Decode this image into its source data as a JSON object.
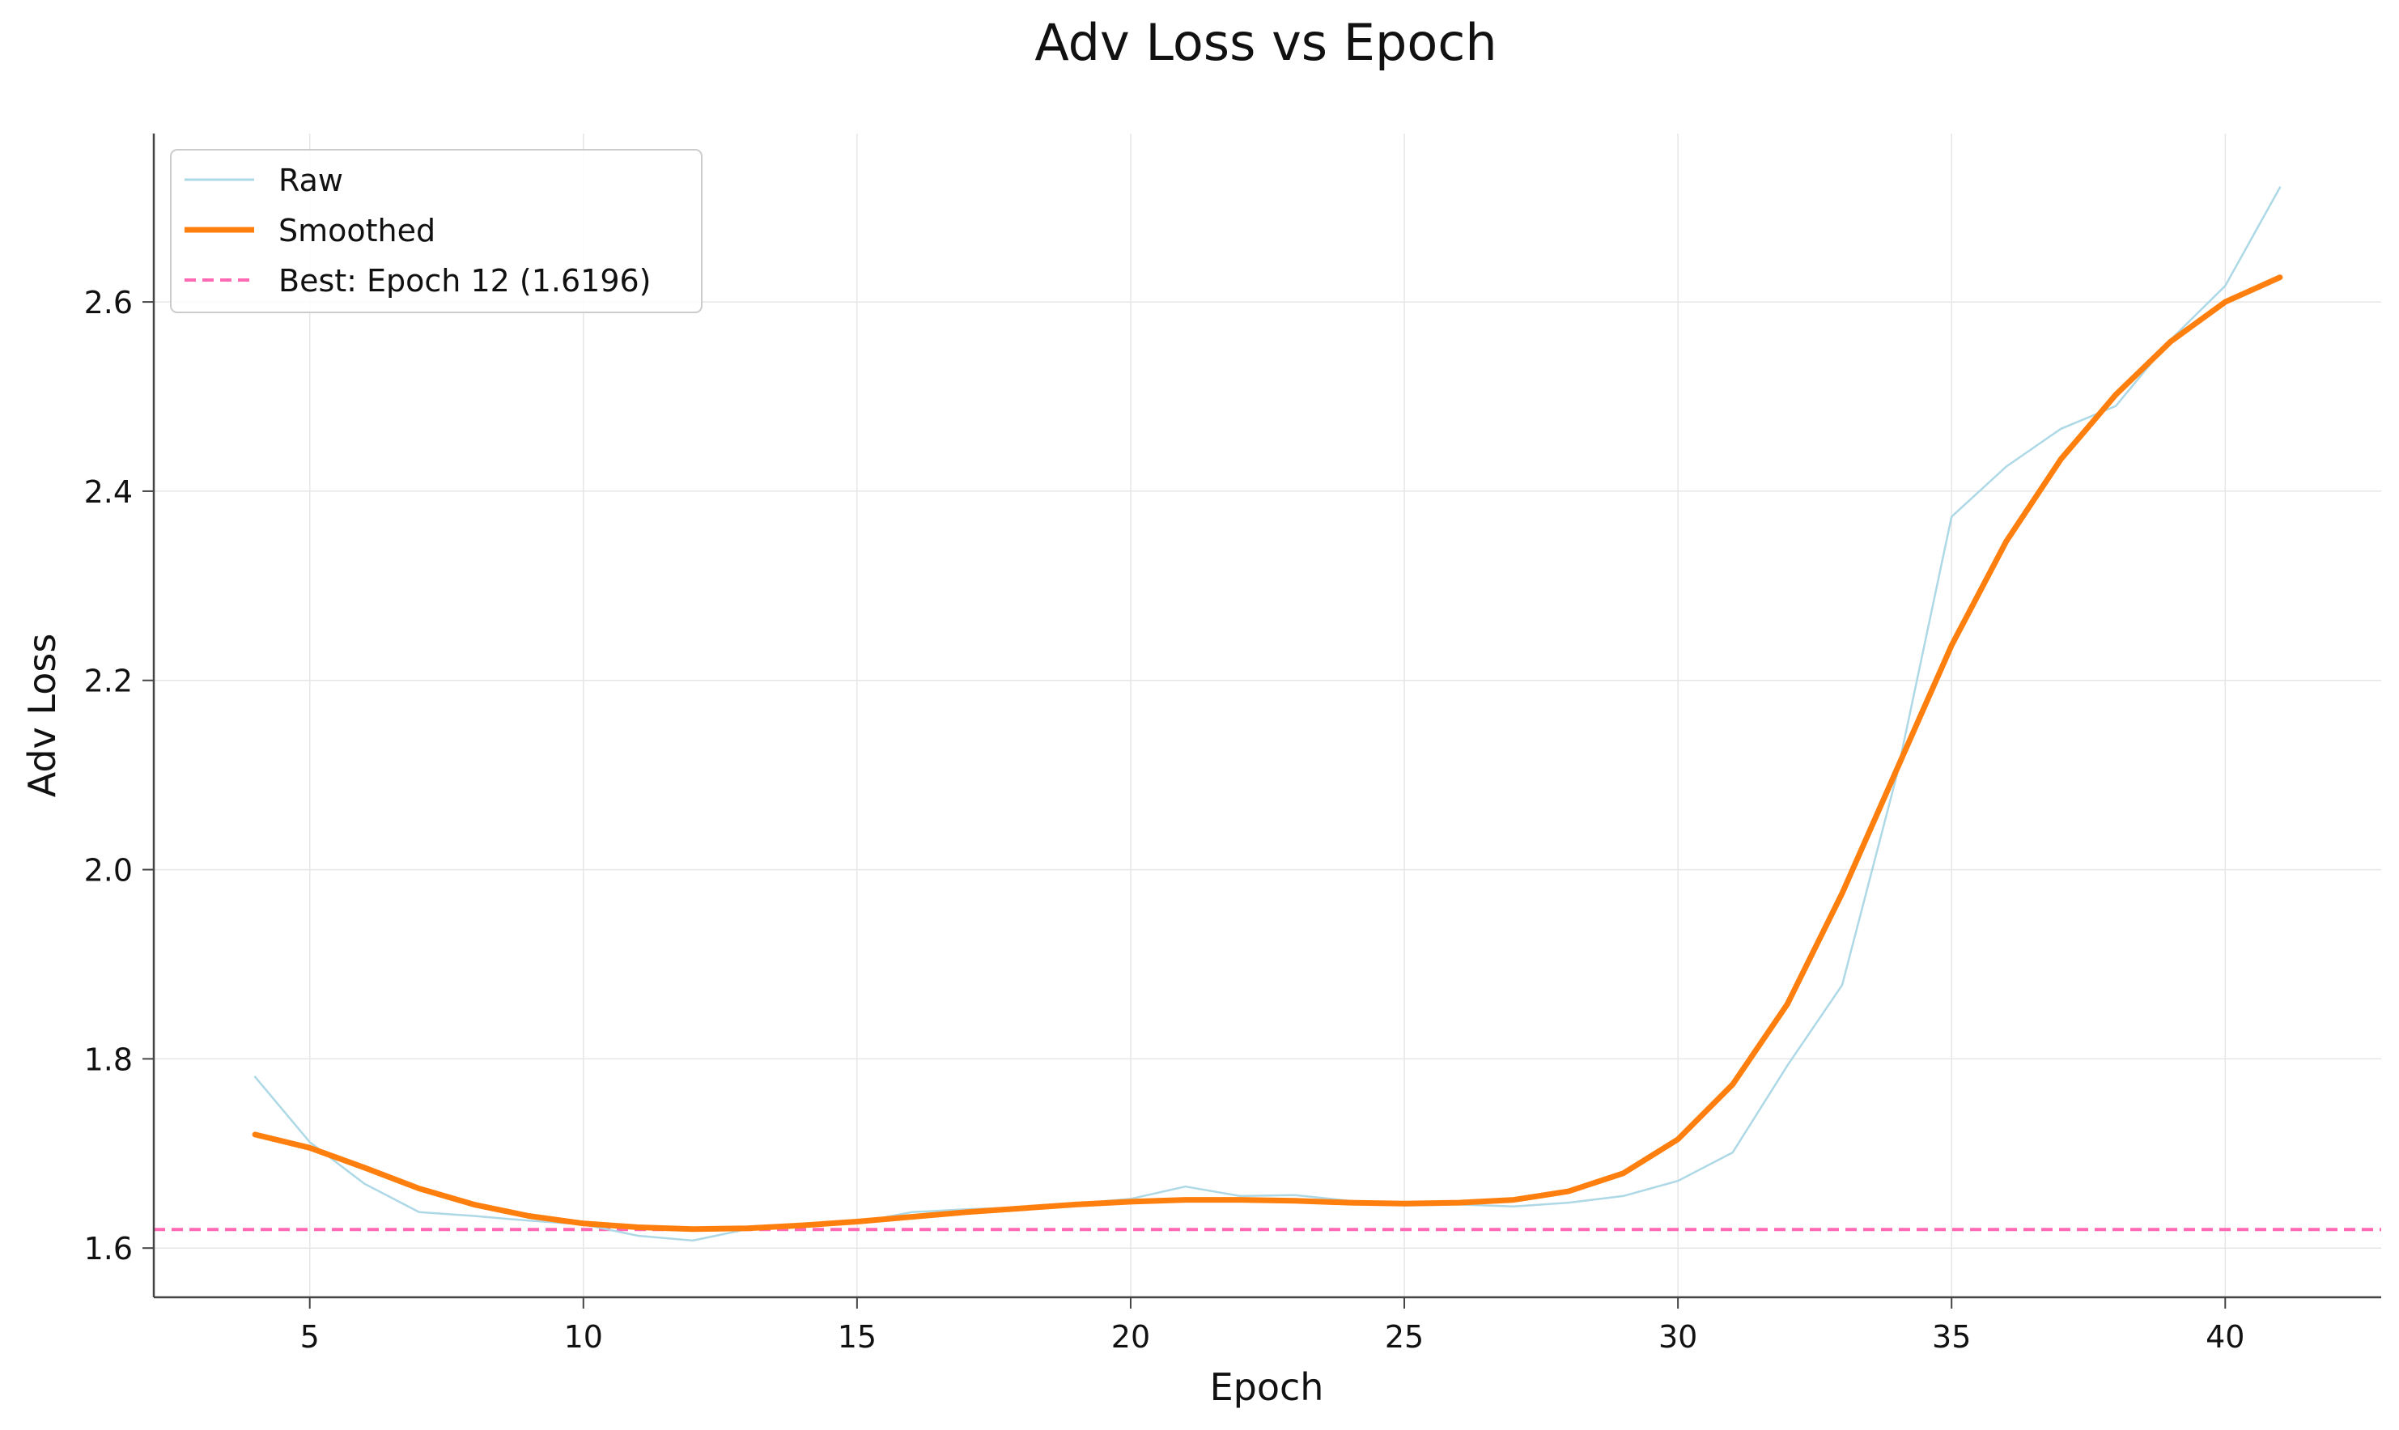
{
  "chart_data": {
    "type": "line",
    "title": "Adv Loss vs Epoch",
    "xlabel": "Epoch",
    "ylabel": "Adv Loss",
    "xlim": [
      2.15,
      42.85
    ],
    "ylim": [
      1.548,
      2.778
    ],
    "x_ticks": [
      5,
      10,
      15,
      20,
      25,
      30,
      35,
      40
    ],
    "x_tick_labels": [
      "5",
      "10",
      "15",
      "20",
      "25",
      "30",
      "35",
      "40"
    ],
    "y_ticks": [
      1.6,
      1.8,
      2.0,
      2.2,
      2.4,
      2.6
    ],
    "y_tick_labels": [
      "1.6",
      "1.8",
      "2.0",
      "2.2",
      "2.4",
      "2.6"
    ],
    "grid": true,
    "legend_position": "top-left",
    "series": [
      {
        "name": "Raw",
        "color": "#add8e6",
        "x": [
          4,
          5,
          6,
          7,
          8,
          9,
          10,
          11,
          12,
          13,
          14,
          15,
          16,
          17,
          18,
          19,
          20,
          21,
          22,
          23,
          24,
          25,
          26,
          27,
          28,
          29,
          30,
          31,
          32,
          33,
          34,
          35,
          36,
          37,
          38,
          39,
          40,
          41
        ],
        "y": [
          1.781,
          1.712,
          1.668,
          1.638,
          1.634,
          1.629,
          1.625,
          1.613,
          1.608,
          1.62,
          1.623,
          1.627,
          1.638,
          1.641,
          1.643,
          1.647,
          1.652,
          1.665,
          1.655,
          1.656,
          1.65,
          1.645,
          1.646,
          1.644,
          1.648,
          1.655,
          1.671,
          1.701,
          1.793,
          1.878,
          2.1,
          2.373,
          2.426,
          2.466,
          2.49,
          2.56,
          2.617,
          2.721
        ]
      },
      {
        "name": "Smoothed",
        "color": "#ff7f0e",
        "x": [
          4,
          5,
          6,
          7,
          8,
          9,
          10,
          11,
          12,
          13,
          14,
          15,
          16,
          17,
          18,
          19,
          20,
          21,
          22,
          23,
          24,
          25,
          26,
          27,
          28,
          29,
          30,
          31,
          32,
          33,
          34,
          35,
          36,
          37,
          38,
          39,
          40,
          41
        ],
        "y": [
          1.72,
          1.706,
          1.685,
          1.663,
          1.646,
          1.634,
          1.626,
          1.622,
          1.62,
          1.621,
          1.624,
          1.628,
          1.633,
          1.638,
          1.642,
          1.646,
          1.649,
          1.651,
          1.651,
          1.65,
          1.648,
          1.647,
          1.648,
          1.651,
          1.66,
          1.679,
          1.715,
          1.773,
          1.858,
          1.975,
          2.106,
          2.237,
          2.347,
          2.434,
          2.502,
          2.558,
          2.6,
          2.626
        ]
      }
    ],
    "reference_line": {
      "name": "Best: Epoch 12 (1.6196)",
      "y": 1.6196,
      "color": "#ff69b4",
      "style": "dashed"
    }
  }
}
